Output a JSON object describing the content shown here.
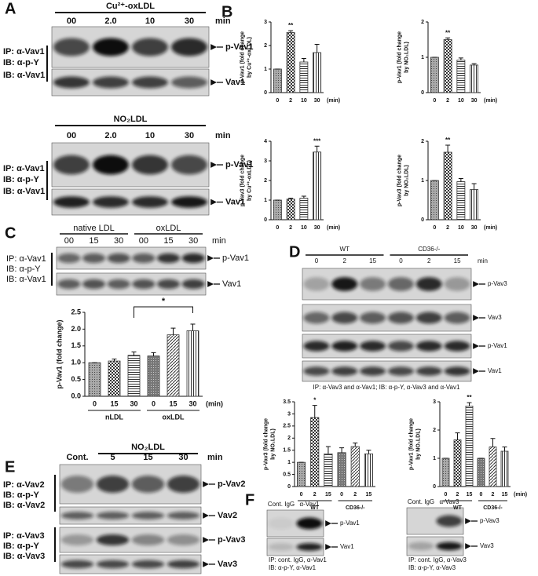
{
  "panel_labels": [
    "A",
    "B",
    "C",
    "D",
    "E",
    "F"
  ],
  "blots": [
    {
      "header": "Cu²⁺-oxLDL",
      "lanes": [
        "00",
        "2.0",
        "10",
        "30"
      ],
      "unit": "min",
      "probe_labels": [
        "IP: α-Vav1",
        "IB: α-p-Y",
        "IB: α-Vav1"
      ],
      "bands": [
        "p-Vav1",
        "Vav1"
      ]
    },
    {
      "header": "NO₂LDL",
      "lanes": [
        "00",
        "2.0",
        "10",
        "30"
      ],
      "unit": "min",
      "probe_labels": [
        "IP: α-Vav1",
        "IB: α-p-Y",
        "IB: α-Vav1"
      ],
      "bands": [
        "p-Vav1",
        "Vav1"
      ]
    },
    {
      "groups": [
        "native LDL",
        "oxLDL"
      ],
      "lanes": [
        "00",
        "15",
        "30",
        "00",
        "15",
        "30"
      ],
      "unit": "min",
      "probe_labels": [
        "IP: α-Vav1",
        "IB: α-p-Y",
        "IB: α-Vav1"
      ],
      "bands": [
        "p-Vav1",
        "Vav1"
      ]
    },
    {
      "groups": [
        "WT",
        "CD36-/-"
      ],
      "lanes": [
        "0",
        "2",
        "15",
        "0",
        "2",
        "15"
      ],
      "unit": "min",
      "bands": [
        "p-Vav3",
        "Vav3",
        "p-Vav1",
        "Vav1"
      ],
      "caption": [
        "IP: α-Vav3 and α-Vav1; IB: α-p-Y, α-Vav3 and α-Vav1"
      ]
    },
    {
      "header": "NO₂LDL",
      "lanes": [
        "Cont.",
        "5",
        "15",
        "30"
      ],
      "unit": "min",
      "probe_labels": [
        "IP: α-Vav2",
        "IB: α-p-Y",
        "IB: α-Vav2",
        "IP: α-Vav3",
        "IB: α-p-Y",
        "IB: α-Vav3"
      ],
      "bands": [
        "p-Vav2",
        "Vav2",
        "p-Vav3",
        "Vav3"
      ]
    },
    {
      "lanes": [
        "Cont. IgG",
        "α-Vav1"
      ],
      "bands": [
        "p-Vav1",
        "Vav1"
      ],
      "caption": [
        "IP: cont. IgG, α-Vav1",
        "IB: α-p-Y, α-Vav1"
      ]
    },
    {
      "lanes": [
        "Cont. IgG",
        "α-Vav3"
      ],
      "bands": [
        "p-Vav3",
        "Vav3"
      ],
      "caption": [
        "IP: cont. IgG, α-Vav3",
        "IB: α-p-Y, α-Vav3"
      ]
    }
  ],
  "chart_data": [
    {
      "type": "bar",
      "ylabel": [
        "p-Vav1 (fold change",
        "by Cu²⁺-oxLDL)"
      ],
      "categories": [
        "0",
        "2",
        "10",
        "30"
      ],
      "xlabel": "(min)",
      "values": [
        1,
        2.55,
        1.3,
        1.7
      ],
      "errors": [
        0,
        0.08,
        0.15,
        0.35
      ],
      "significance": [
        null,
        "**",
        null,
        null
      ],
      "ylim": [
        0,
        3
      ],
      "yticks": [
        0,
        1,
        2,
        3
      ],
      "color": "#333"
    },
    {
      "type": "bar",
      "ylabel": [
        "p-Vav1 (fold change",
        "by NO₂LDL)"
      ],
      "categories": [
        "0",
        "2",
        "10",
        "30"
      ],
      "xlabel": "(min)",
      "values": [
        1,
        1.5,
        0.92,
        0.78
      ],
      "errors": [
        0,
        0.05,
        0.06,
        0.04
      ],
      "significance": [
        null,
        "**",
        null,
        null
      ],
      "ylim": [
        0,
        2
      ],
      "yticks": [
        0,
        1,
        2
      ],
      "color": "#333"
    },
    {
      "type": "bar",
      "ylabel": [
        "p-Vav3 (fold change",
        "by Cu²⁺-oxLDL)"
      ],
      "categories": [
        "0",
        "2",
        "10",
        "30"
      ],
      "xlabel": "(min)",
      "values": [
        1,
        1.05,
        1.1,
        3.45
      ],
      "errors": [
        0,
        0.05,
        0.1,
        0.3
      ],
      "significance": [
        null,
        null,
        null,
        "***"
      ],
      "ylim": [
        0,
        4
      ],
      "yticks": [
        0,
        1,
        2,
        3,
        4
      ],
      "color": "#333"
    },
    {
      "type": "bar",
      "ylabel": [
        "p-Vav3 (fold change",
        "by NO₂LDL)"
      ],
      "categories": [
        "0",
        "2",
        "10",
        "30"
      ],
      "xlabel": "(min)",
      "values": [
        1,
        1.72,
        0.97,
        0.77
      ],
      "errors": [
        0,
        0.18,
        0.08,
        0.15
      ],
      "significance": [
        null,
        "**",
        null,
        null
      ],
      "ylim": [
        0,
        2
      ],
      "yticks": [
        0,
        1,
        2
      ],
      "color": "#333"
    },
    {
      "type": "bar",
      "ylabel": [
        "p-Vav1 (fold change)"
      ],
      "categories": [
        "0",
        "15",
        "30",
        "0",
        "15",
        "30"
      ],
      "xlabel": "(min)",
      "groups": [
        "nLDL",
        "oxLDL"
      ],
      "values": [
        1,
        1.05,
        1.22,
        1.2,
        1.83,
        1.95
      ],
      "errors": [
        0,
        0.06,
        0.1,
        0.1,
        0.2,
        0.2
      ],
      "significance": [
        null,
        null,
        null,
        null,
        null,
        "*"
      ],
      "ylim": [
        0,
        2.5
      ],
      "yticks": [
        {
          "value": 0,
          "label": "0.0"
        },
        0.5,
        {
          "value": 1,
          "label": "1.0"
        },
        1.5,
        {
          "value": 2,
          "label": "2.0"
        },
        2.5
      ],
      "color": "#333"
    },
    {
      "type": "bar",
      "ylabel": [
        "p-Vav3 (fold change",
        "by NO₂LDL)"
      ],
      "categories": [
        "0",
        "2",
        "15",
        "0",
        "2",
        "15"
      ],
      "groups": [
        "WT",
        "CD36-/-"
      ],
      "values": [
        1,
        2.85,
        1.35,
        1.4,
        1.65,
        1.35
      ],
      "errors": [
        0,
        0.5,
        0.3,
        0.2,
        0.15,
        0.15
      ],
      "significance": [
        null,
        "*",
        null,
        null,
        null,
        null
      ],
      "ylim": [
        0,
        3.5
      ],
      "yticks": [
        0,
        0.5,
        1,
        1.5,
        2,
        2.5,
        3,
        3.5
      ],
      "color": "#333"
    },
    {
      "type": "bar",
      "ylabel": [
        "p-Vav1 (fold change",
        "by NO₂LDL)"
      ],
      "categories": [
        "0",
        "2",
        "15",
        "0",
        "2",
        "15"
      ],
      "xlabel": "(min)",
      "groups": [
        "WT",
        "CD36-/-"
      ],
      "values": [
        1,
        1.65,
        2.85,
        1,
        1.4,
        1.25
      ],
      "errors": [
        0,
        0.25,
        0.12,
        0,
        0.3,
        0.15
      ],
      "significance": [
        null,
        null,
        "**",
        null,
        null,
        null
      ],
      "ylim": [
        0,
        3
      ],
      "yticks": [
        0,
        1,
        2,
        3
      ],
      "color": "#333"
    }
  ]
}
